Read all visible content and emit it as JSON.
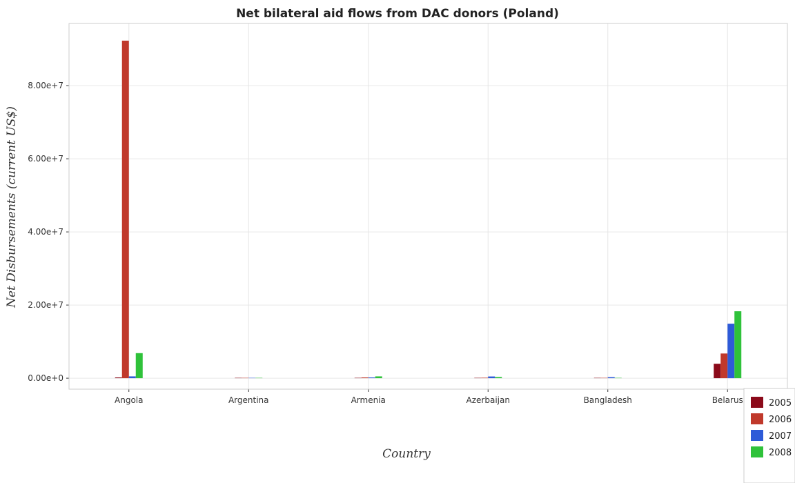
{
  "chart_data": {
    "type": "bar",
    "title": "Net bilateral aid flows from DAC donors (Poland)",
    "xlabel": "Country",
    "ylabel": "Net Disbursements (current US$)",
    "categories": [
      "Angola",
      "Argentina",
      "Armenia",
      "Azerbaijan",
      "Bangladesh",
      "Belarus"
    ],
    "series": [
      {
        "name": "2005",
        "color": "#8b0a1a",
        "values": [
          200000,
          80000,
          100000,
          30000,
          10000,
          3950000
        ]
      },
      {
        "name": "2006",
        "color": "#c0392b",
        "values": [
          92300000,
          20000,
          200000,
          130000,
          10000,
          6750000
        ]
      },
      {
        "name": "2007",
        "color": "#2e5bd8",
        "values": [
          500000,
          40000,
          200000,
          470000,
          280000,
          14900000
        ]
      },
      {
        "name": "2008",
        "color": "#2fc23a",
        "values": [
          6850000,
          10000,
          500000,
          320000,
          70000,
          18300000
        ]
      }
    ],
    "ylim": [
      -3000000,
      97000000
    ],
    "yticks": [
      0,
      20000000,
      40000000,
      60000000,
      80000000
    ],
    "ytick_labels": [
      "0.00e+0",
      "2.00e+7",
      "4.00e+7",
      "6.00e+7",
      "8.00e+7"
    ],
    "grid": true,
    "legend_position": "bottom-right"
  }
}
